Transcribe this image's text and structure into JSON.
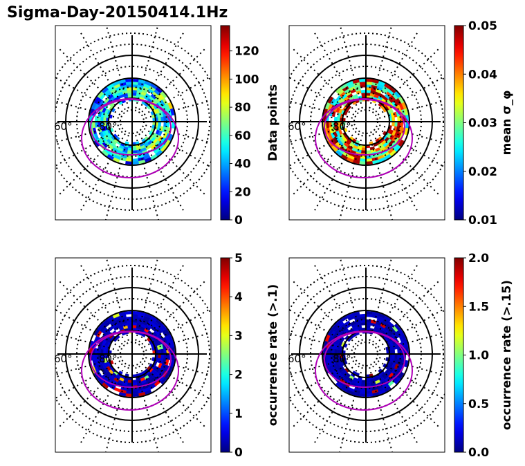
{
  "figure": {
    "title": "Sigma-Day-20150414.1Hz"
  },
  "chart_data": [
    {
      "type": "heatmap",
      "projection": "polar",
      "lat_ring_labels": [
        "60°",
        "80°"
      ],
      "colorbar": {
        "label": "Data points",
        "range": [
          0,
          138
        ],
        "ticks": [
          "0",
          "20",
          "40",
          "60",
          "80",
          "100",
          "120"
        ]
      },
      "value_range": [
        0,
        138
      ],
      "oval_color": "#b000b8",
      "pattern": "ring-mixed-low"
    },
    {
      "type": "heatmap",
      "projection": "polar",
      "lat_ring_labels": [
        "60°",
        "80°"
      ],
      "colorbar": {
        "label": "mean σ_φ",
        "range": [
          0.01,
          0.05
        ],
        "ticks": [
          "0.01",
          "0.02",
          "0.03",
          "0.04",
          "0.05"
        ]
      },
      "value_range": [
        0.01,
        0.05
      ],
      "oval_color": "#b000b8",
      "pattern": "ring-mid-high"
    },
    {
      "type": "heatmap",
      "projection": "polar",
      "lat_ring_labels": [
        "60°",
        "80°"
      ],
      "colorbar": {
        "label": "occurrence rate (>.1)",
        "range": [
          0,
          5
        ],
        "ticks": [
          "0",
          "1",
          "2",
          "3",
          "4",
          "5"
        ]
      },
      "value_range": [
        0,
        5
      ],
      "oval_color": "#b000b8",
      "pattern": "ring-low-sparse-high"
    },
    {
      "type": "heatmap",
      "projection": "polar",
      "lat_ring_labels": [
        "60°",
        "80°"
      ],
      "colorbar": {
        "label": "occurrence rate (>.15)",
        "range": [
          0,
          2
        ],
        "ticks": [
          "0.0",
          "0.5",
          "1.0",
          "1.5",
          "2.0"
        ]
      },
      "value_range": [
        0,
        2
      ],
      "oval_color": "#b000b8",
      "pattern": "ring-low-few-high"
    }
  ]
}
